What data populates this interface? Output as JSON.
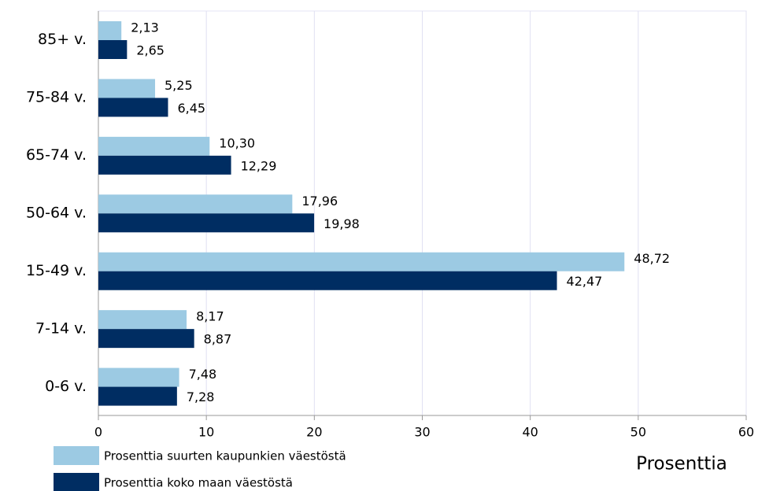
{
  "chart_data": {
    "type": "bar",
    "orientation": "horizontal",
    "categories": [
      "85+ v.",
      "75-84 v.",
      "65-74 v.",
      "50-64 v.",
      "15-49 v.",
      "7-14 v.",
      "0-6 v."
    ],
    "series": [
      {
        "name": "Prosenttia suurten kaupunkien väestöstä",
        "color": "#9ccae3",
        "values": [
          2.13,
          5.25,
          10.3,
          17.96,
          48.72,
          8.17,
          7.48
        ],
        "value_labels": [
          "2,13",
          "5,25",
          "10,30",
          "17,96",
          "48,72",
          "8,17",
          "7,48"
        ]
      },
      {
        "name": "Prosenttia koko maan väestöstä",
        "color": "#002d62",
        "values": [
          2.65,
          6.45,
          12.29,
          19.98,
          42.47,
          8.87,
          7.28
        ],
        "value_labels": [
          "2,65",
          "6,45",
          "12,29",
          "19,98",
          "42,47",
          "8,87",
          "7,28"
        ]
      }
    ],
    "x_label": "Prosenttia",
    "xlim": [
      0,
      60
    ],
    "xticks": [
      0,
      10,
      20,
      30,
      40,
      50,
      60
    ],
    "grid": true
  }
}
